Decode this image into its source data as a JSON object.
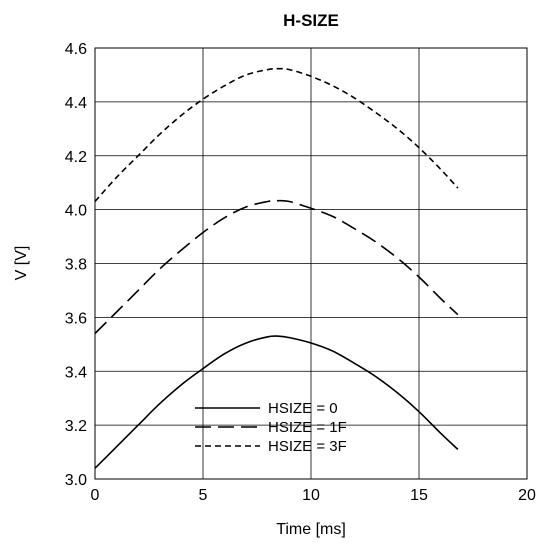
{
  "chart_data": {
    "type": "line",
    "title": "H-SIZE",
    "xlabel": "Time [ms]",
    "ylabel": "V [V]",
    "xlim": [
      0,
      20
    ],
    "ylim": [
      3.0,
      4.6
    ],
    "xticks": [
      "0",
      "5",
      "10",
      "15",
      "20"
    ],
    "yticks": [
      "3.0",
      "3.2",
      "3.4",
      "3.6",
      "3.8",
      "4.0",
      "4.2",
      "4.4",
      "4.6"
    ],
    "grid": true,
    "legend_position": "bottom-center",
    "series": [
      {
        "name": "HSIZE = 0",
        "line_style": "solid",
        "x": [
          0,
          1,
          2,
          3,
          4,
          5,
          6,
          7,
          8,
          8.5,
          9,
          10,
          11,
          12,
          13,
          14,
          15,
          16,
          16.8
        ],
        "y": [
          3.04,
          3.12,
          3.2,
          3.28,
          3.35,
          3.41,
          3.465,
          3.505,
          3.528,
          3.53,
          3.525,
          3.505,
          3.475,
          3.43,
          3.38,
          3.32,
          3.25,
          3.17,
          3.11
        ]
      },
      {
        "name": "HSIZE = 1F",
        "line_style": "dashed",
        "x": [
          0,
          1,
          2,
          3,
          4,
          5,
          6,
          7,
          8,
          8.5,
          9,
          10,
          11,
          12,
          13,
          14,
          15,
          16,
          16.8
        ],
        "y": [
          3.54,
          3.62,
          3.7,
          3.78,
          3.85,
          3.915,
          3.97,
          4.01,
          4.03,
          4.033,
          4.03,
          4.005,
          3.975,
          3.93,
          3.88,
          3.82,
          3.75,
          3.67,
          3.61
        ]
      },
      {
        "name": "HSIZE = 3F",
        "line_style": "short-dashed",
        "x": [
          0,
          1,
          2,
          3,
          4,
          5,
          6,
          7,
          8,
          8.5,
          9,
          10,
          11,
          12,
          13,
          14,
          15,
          16,
          16.8
        ],
        "y": [
          4.03,
          4.12,
          4.2,
          4.28,
          4.35,
          4.41,
          4.46,
          4.5,
          4.52,
          4.523,
          4.52,
          4.495,
          4.46,
          4.415,
          4.36,
          4.3,
          4.23,
          4.15,
          4.08
        ]
      }
    ]
  }
}
